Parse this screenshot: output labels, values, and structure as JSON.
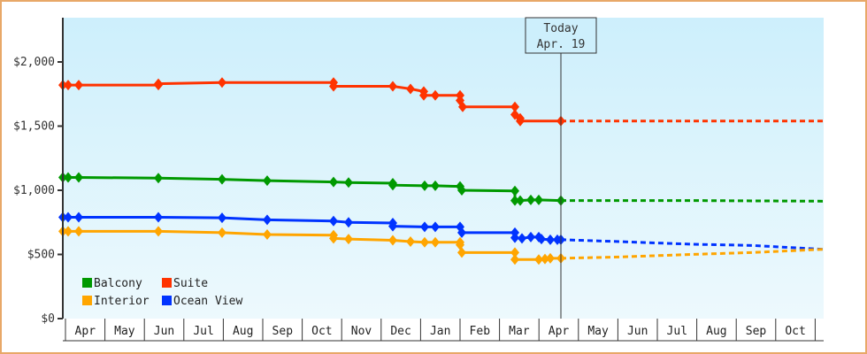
{
  "chart_data": {
    "type": "line",
    "title": "",
    "xlabel": "",
    "ylabel": "",
    "ylim": [
      0,
      2300
    ],
    "yticks": [
      "$0",
      "$500",
      "$1,000",
      "$1,500",
      "$2,000"
    ],
    "ytick_values": [
      0,
      500,
      1000,
      1500,
      2000
    ],
    "months": [
      "Apr",
      "May",
      "Jun",
      "Jul",
      "Aug",
      "Sep",
      "Oct",
      "Nov",
      "Dec",
      "Jan",
      "Feb",
      "Mar",
      "Apr",
      "May",
      "Jun",
      "Jul",
      "Aug",
      "Sep",
      "Oct"
    ],
    "today": {
      "line1": "Today",
      "line2": "Apr. 19"
    },
    "legend": [
      {
        "name": "Balcony",
        "color": "#009900"
      },
      {
        "name": "Suite",
        "color": "#ff3300"
      },
      {
        "name": "Interior",
        "color": "#ffa500"
      },
      {
        "name": "Ocean View",
        "color": "#0033ff"
      }
    ],
    "series": [
      {
        "name": "Suite",
        "color": "#ff3300",
        "historical": [
          [
            71,
            1820
          ],
          [
            77,
            1820
          ],
          [
            89,
            1820
          ],
          [
            179,
            1820
          ],
          [
            179,
            1830
          ],
          [
            251,
            1840
          ],
          [
            377,
            1840
          ],
          [
            377,
            1810
          ],
          [
            444,
            1810
          ],
          [
            464,
            1790
          ],
          [
            479,
            1770
          ],
          [
            479,
            1740
          ],
          [
            492,
            1740
          ],
          [
            520,
            1740
          ],
          [
            520,
            1700
          ],
          [
            523,
            1650
          ],
          [
            582,
            1650
          ],
          [
            582,
            1590
          ],
          [
            588,
            1560
          ],
          [
            588,
            1540
          ],
          [
            634,
            1540
          ]
        ],
        "forecast": [
          [
            634,
            1540
          ],
          [
            930,
            1540
          ]
        ]
      },
      {
        "name": "Balcony",
        "color": "#009900",
        "historical": [
          [
            71,
            1100
          ],
          [
            77,
            1100
          ],
          [
            89,
            1100
          ],
          [
            179,
            1095
          ],
          [
            251,
            1085
          ],
          [
            302,
            1075
          ],
          [
            377,
            1065
          ],
          [
            394,
            1060
          ],
          [
            444,
            1055
          ],
          [
            444,
            1040
          ],
          [
            480,
            1035
          ],
          [
            492,
            1035
          ],
          [
            520,
            1030
          ],
          [
            522,
            1000
          ],
          [
            582,
            995
          ],
          [
            582,
            920
          ],
          [
            588,
            920
          ],
          [
            600,
            925
          ],
          [
            609,
            925
          ],
          [
            634,
            920
          ]
        ],
        "forecast": [
          [
            634,
            920
          ],
          [
            780,
            920
          ],
          [
            930,
            915
          ]
        ]
      },
      {
        "name": "Ocean View",
        "color": "#0033ff",
        "historical": [
          [
            71,
            790
          ],
          [
            77,
            790
          ],
          [
            89,
            790
          ],
          [
            179,
            790
          ],
          [
            251,
            785
          ],
          [
            302,
            770
          ],
          [
            377,
            760
          ],
          [
            394,
            750
          ],
          [
            444,
            745
          ],
          [
            444,
            720
          ],
          [
            480,
            715
          ],
          [
            492,
            715
          ],
          [
            520,
            715
          ],
          [
            522,
            670
          ],
          [
            582,
            670
          ],
          [
            582,
            630
          ],
          [
            590,
            625
          ],
          [
            600,
            635
          ],
          [
            609,
            635
          ],
          [
            612,
            620
          ],
          [
            622,
            615
          ],
          [
            630,
            615
          ],
          [
            634,
            615
          ]
        ],
        "forecast": [
          [
            634,
            615
          ],
          [
            700,
            600
          ],
          [
            780,
            580
          ],
          [
            850,
            570
          ],
          [
            930,
            540
          ]
        ]
      },
      {
        "name": "Interior",
        "color": "#ffa500",
        "historical": [
          [
            71,
            680
          ],
          [
            77,
            680
          ],
          [
            89,
            680
          ],
          [
            179,
            680
          ],
          [
            251,
            670
          ],
          [
            302,
            655
          ],
          [
            377,
            650
          ],
          [
            377,
            625
          ],
          [
            394,
            620
          ],
          [
            444,
            610
          ],
          [
            464,
            600
          ],
          [
            480,
            595
          ],
          [
            492,
            595
          ],
          [
            520,
            595
          ],
          [
            520,
            575
          ],
          [
            522,
            515
          ],
          [
            582,
            515
          ],
          [
            582,
            460
          ],
          [
            609,
            460
          ],
          [
            616,
            465
          ],
          [
            622,
            470
          ],
          [
            634,
            470
          ]
        ],
        "forecast": [
          [
            634,
            470
          ],
          [
            700,
            480
          ],
          [
            780,
            500
          ],
          [
            850,
            515
          ],
          [
            930,
            540
          ]
        ]
      }
    ]
  }
}
